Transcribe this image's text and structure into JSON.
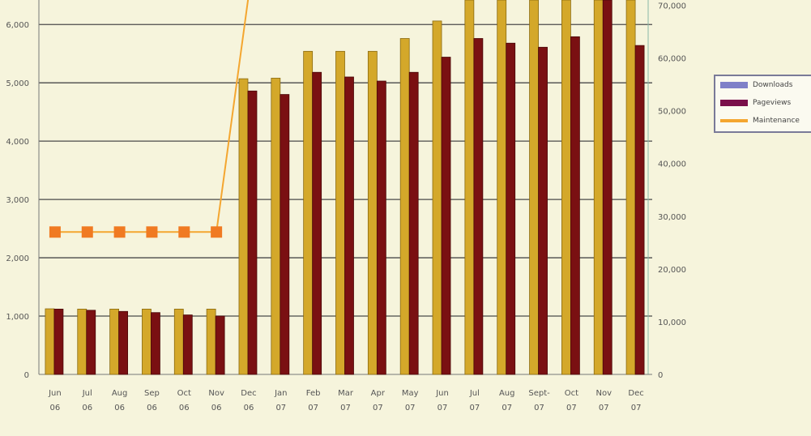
{
  "chart_data": {
    "type": "bar",
    "categories": [
      "Jun 06",
      "Jul 06",
      "Aug 06",
      "Sep 06",
      "Oct 06",
      "Nov 06",
      "Dec 06",
      "Jan 07",
      "Feb 07",
      "Mar 07",
      "Apr 07",
      "May 07",
      "Jun 07",
      "Jul 07",
      "Aug 07",
      "Sep 07",
      "Oct 07",
      "Nov 07",
      "Dec 07"
    ],
    "category_lines": [
      [
        "Jun",
        "06"
      ],
      [
        "Jul",
        "06"
      ],
      [
        "Aug",
        "06"
      ],
      [
        "Sep",
        "06"
      ],
      [
        "Oct",
        "06"
      ],
      [
        "Nov",
        "06"
      ],
      [
        "Dec",
        "06"
      ],
      [
        "Jan",
        "07"
      ],
      [
        "Feb",
        "07"
      ],
      [
        "Mar",
        "07"
      ],
      [
        "Apr",
        "07"
      ],
      [
        "May",
        "07"
      ],
      [
        "Jun",
        "07"
      ],
      [
        "Jul",
        "07"
      ],
      [
        "Aug",
        "07"
      ],
      [
        "Sept-",
        "07"
      ],
      [
        "Oct",
        "07"
      ],
      [
        "Nov",
        "07"
      ],
      [
        "Dec",
        "07"
      ]
    ],
    "series": [
      {
        "name": "Downloads",
        "type": "bar",
        "axis": "left",
        "color": "#d4a82a",
        "values": [
          1125,
          1120,
          1120,
          1120,
          1120,
          1120,
          5070,
          5080,
          5540,
          5540,
          5540,
          5760,
          6060,
          6500,
          6500,
          6500,
          6500,
          6500,
          6500
        ]
      },
      {
        "name": "Pageviews",
        "type": "bar",
        "axis": "left",
        "color": "#7a1012",
        "values": [
          1120,
          1100,
          1080,
          1060,
          1020,
          1000,
          4860,
          4800,
          5180,
          5100,
          5030,
          5180,
          5440,
          5760,
          5680,
          5610,
          5790,
          6500,
          5640
        ]
      },
      {
        "name": "Maintenance",
        "type": "line",
        "axis": "right",
        "color": "#f4a630",
        "marker_color": "#f07a22",
        "values": [
          27000,
          27000,
          27000,
          27000,
          27000,
          27000,
          72000,
          null,
          null,
          null,
          null,
          null,
          null,
          null,
          null,
          null,
          null,
          null,
          null
        ]
      }
    ],
    "left_axis": {
      "ylim": [
        0,
        6420
      ],
      "ticks": [
        0,
        1000,
        2000,
        3000,
        4000,
        5000,
        6000
      ],
      "tick_labels": [
        "0",
        "1,000",
        "2,000",
        "3,000",
        "4,000",
        "5,000",
        "6,000"
      ]
    },
    "right_axis": {
      "ylim": [
        0,
        71000
      ],
      "ticks": [
        0,
        10000,
        20000,
        30000,
        40000,
        50000,
        60000,
        70000
      ],
      "tick_labels": [
        "0",
        "10,000",
        "20,000",
        "30,000",
        "40,000",
        "50,000",
        "60,000",
        "70,000"
      ]
    },
    "grid": true,
    "legend_position": "right"
  }
}
